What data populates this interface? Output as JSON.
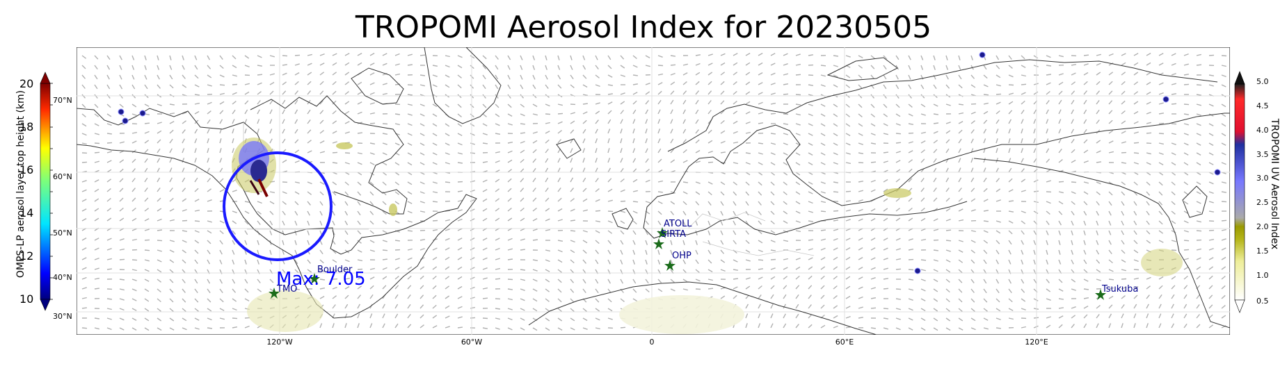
{
  "title": "TROPOMI Aerosol Index for 20230505",
  "left_colorbar": {
    "label": "OMPS-LP aerosol layer top height (km)",
    "ticks": [
      "20",
      "18",
      "16",
      "14",
      "12",
      "10"
    ]
  },
  "right_colorbar": {
    "label": "TROPOMI UV Aerosol Index",
    "ticks": [
      "5.0",
      "4.5",
      "4.0",
      "3.5",
      "3.0",
      "2.5",
      "2.0",
      "1.5",
      "1.0",
      "0.5"
    ]
  },
  "lat_labels": [
    "70°N",
    "60°N",
    "50°N",
    "40°N",
    "30°N"
  ],
  "lon_labels": [
    "120°W",
    "60°W",
    "0",
    "60°E",
    "120°E"
  ],
  "annotation": {
    "text": "Max: 7.05",
    "color": "#0000ff"
  },
  "stations": [
    "ATOLL",
    "SIRTA",
    "OHP",
    "Boulder",
    "TMO",
    "Tsukuba"
  ],
  "colors": {
    "station": "#00008b",
    "circle": "#1a1aff",
    "star": "#1a6b1a"
  }
}
